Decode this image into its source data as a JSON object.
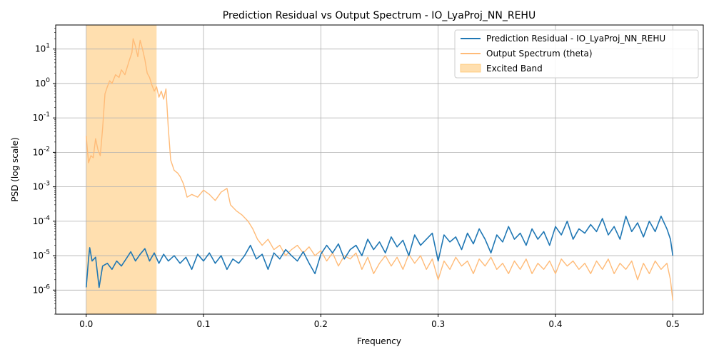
{
  "chart_data": {
    "type": "line",
    "title": "Prediction Residual vs Output Spectrum - IO_LyaProj_NN_REHU",
    "xlabel": "Frequency",
    "ylabel": "PSD (log scale)",
    "xlim": [
      -0.026,
      0.526
    ],
    "ylim": [
      2e-07,
      50
    ],
    "yscale": "log",
    "grid": true,
    "legend_position": "top-right",
    "x_ticks": [
      0.0,
      0.1,
      0.2,
      0.3,
      0.4,
      0.5
    ],
    "x_tick_labels": [
      "0.0",
      "0.1",
      "0.2",
      "0.3",
      "0.4",
      "0.5"
    ],
    "y_ticks": [
      1e-06,
      1e-05,
      0.0001,
      0.001,
      0.01,
      0.1,
      1,
      10
    ],
    "y_tick_exponents": [
      "-6",
      "-5",
      "-4",
      "-3",
      "-2",
      "-1",
      "0",
      "1"
    ],
    "y_tick_base": "10",
    "band": {
      "name": "Excited Band",
      "x_start": 0.0,
      "x_end": 0.06,
      "color": "#ffb74d"
    },
    "series": [
      {
        "name": "Prediction Residual - IO_LyaProj_NN_REHU",
        "color": "#1f77b4",
        "points": [
          [
            0.0,
            1.2e-06
          ],
          [
            0.002,
            8e-06
          ],
          [
            0.003,
            1.7e-05
          ],
          [
            0.005,
            7e-06
          ],
          [
            0.008,
            9e-06
          ],
          [
            0.011,
            1.2e-06
          ],
          [
            0.014,
            5e-06
          ],
          [
            0.018,
            6e-06
          ],
          [
            0.022,
            4e-06
          ],
          [
            0.026,
            7e-06
          ],
          [
            0.03,
            5e-06
          ],
          [
            0.034,
            8e-06
          ],
          [
            0.038,
            1.3e-05
          ],
          [
            0.042,
            7e-06
          ],
          [
            0.046,
            1.1e-05
          ],
          [
            0.05,
            1.6e-05
          ],
          [
            0.054,
            7e-06
          ],
          [
            0.058,
            1.2e-05
          ],
          [
            0.062,
            6e-06
          ],
          [
            0.066,
            1.1e-05
          ],
          [
            0.07,
            7e-06
          ],
          [
            0.075,
            1e-05
          ],
          [
            0.08,
            6e-06
          ],
          [
            0.085,
            9e-06
          ],
          [
            0.09,
            4e-06
          ],
          [
            0.095,
            1.1e-05
          ],
          [
            0.1,
            7e-06
          ],
          [
            0.105,
            1.2e-05
          ],
          [
            0.11,
            6e-06
          ],
          [
            0.115,
            1e-05
          ],
          [
            0.12,
            4e-06
          ],
          [
            0.125,
            8e-06
          ],
          [
            0.13,
            6e-06
          ],
          [
            0.135,
            1e-05
          ],
          [
            0.14,
            2e-05
          ],
          [
            0.145,
            8e-06
          ],
          [
            0.15,
            1.1e-05
          ],
          [
            0.155,
            4e-06
          ],
          [
            0.16,
            1.2e-05
          ],
          [
            0.165,
            8e-06
          ],
          [
            0.17,
            1.5e-05
          ],
          [
            0.175,
            1e-05
          ],
          [
            0.18,
            7e-06
          ],
          [
            0.185,
            1.3e-05
          ],
          [
            0.19,
            6e-06
          ],
          [
            0.195,
            3e-06
          ],
          [
            0.2,
            1.1e-05
          ],
          [
            0.205,
            2e-05
          ],
          [
            0.21,
            1.2e-05
          ],
          [
            0.215,
            2.2e-05
          ],
          [
            0.22,
            8e-06
          ],
          [
            0.225,
            1.5e-05
          ],
          [
            0.23,
            2e-05
          ],
          [
            0.235,
            1e-05
          ],
          [
            0.24,
            3e-05
          ],
          [
            0.245,
            1.5e-05
          ],
          [
            0.25,
            2.5e-05
          ],
          [
            0.255,
            1.2e-05
          ],
          [
            0.26,
            3.5e-05
          ],
          [
            0.265,
            1.8e-05
          ],
          [
            0.27,
            2.8e-05
          ],
          [
            0.275,
            1e-05
          ],
          [
            0.28,
            4e-05
          ],
          [
            0.285,
            2e-05
          ],
          [
            0.29,
            3e-05
          ],
          [
            0.295,
            4.5e-05
          ],
          [
            0.3,
            7e-06
          ],
          [
            0.305,
            4e-05
          ],
          [
            0.31,
            2.5e-05
          ],
          [
            0.315,
            3.5e-05
          ],
          [
            0.32,
            1.5e-05
          ],
          [
            0.325,
            4.5e-05
          ],
          [
            0.33,
            2.2e-05
          ],
          [
            0.335,
            6e-05
          ],
          [
            0.34,
            3e-05
          ],
          [
            0.345,
            1.2e-05
          ],
          [
            0.35,
            4e-05
          ],
          [
            0.355,
            2.5e-05
          ],
          [
            0.36,
            7e-05
          ],
          [
            0.365,
            3e-05
          ],
          [
            0.37,
            4.5e-05
          ],
          [
            0.375,
            2e-05
          ],
          [
            0.38,
            6e-05
          ],
          [
            0.385,
            3e-05
          ],
          [
            0.39,
            5e-05
          ],
          [
            0.395,
            2e-05
          ],
          [
            0.4,
            7e-05
          ],
          [
            0.405,
            4e-05
          ],
          [
            0.41,
            0.0001
          ],
          [
            0.415,
            3e-05
          ],
          [
            0.42,
            6e-05
          ],
          [
            0.425,
            4.5e-05
          ],
          [
            0.43,
            8e-05
          ],
          [
            0.435,
            5e-05
          ],
          [
            0.44,
            0.00012
          ],
          [
            0.445,
            4e-05
          ],
          [
            0.45,
            7e-05
          ],
          [
            0.455,
            3e-05
          ],
          [
            0.46,
            0.00014
          ],
          [
            0.465,
            5e-05
          ],
          [
            0.47,
            9e-05
          ],
          [
            0.475,
            3.5e-05
          ],
          [
            0.48,
            0.0001
          ],
          [
            0.485,
            5e-05
          ],
          [
            0.49,
            0.00014
          ],
          [
            0.495,
            6e-05
          ],
          [
            0.498,
            3e-05
          ],
          [
            0.5,
            1e-05
          ]
        ]
      },
      {
        "name": "Output Spectrum (theta)",
        "color": "#ffbb78",
        "points": [
          [
            0.0,
            0.03
          ],
          [
            0.002,
            0.005
          ],
          [
            0.004,
            0.008
          ],
          [
            0.006,
            0.007
          ],
          [
            0.008,
            0.025
          ],
          [
            0.01,
            0.012
          ],
          [
            0.012,
            0.008
          ],
          [
            0.014,
            0.05
          ],
          [
            0.016,
            0.5
          ],
          [
            0.018,
            0.8
          ],
          [
            0.02,
            1.2
          ],
          [
            0.022,
            1.0
          ],
          [
            0.025,
            1.8
          ],
          [
            0.028,
            1.5
          ],
          [
            0.03,
            2.5
          ],
          [
            0.033,
            1.8
          ],
          [
            0.035,
            3.0
          ],
          [
            0.037,
            5.0
          ],
          [
            0.039,
            8.0
          ],
          [
            0.04,
            20.0
          ],
          [
            0.042,
            12.0
          ],
          [
            0.044,
            6.0
          ],
          [
            0.046,
            18.0
          ],
          [
            0.048,
            10.0
          ],
          [
            0.05,
            5.0
          ],
          [
            0.052,
            2.0
          ],
          [
            0.054,
            1.5
          ],
          [
            0.056,
            0.9
          ],
          [
            0.058,
            0.6
          ],
          [
            0.06,
            0.8
          ],
          [
            0.062,
            0.4
          ],
          [
            0.064,
            0.6
          ],
          [
            0.066,
            0.35
          ],
          [
            0.068,
            0.7
          ],
          [
            0.07,
            0.05
          ],
          [
            0.072,
            0.006
          ],
          [
            0.075,
            0.003
          ],
          [
            0.078,
            0.0025
          ],
          [
            0.08,
            0.002
          ],
          [
            0.083,
            0.0012
          ],
          [
            0.086,
            0.0005
          ],
          [
            0.09,
            0.0006
          ],
          [
            0.095,
            0.0005
          ],
          [
            0.1,
            0.0008
          ],
          [
            0.105,
            0.0006
          ],
          [
            0.11,
            0.0004
          ],
          [
            0.115,
            0.0007
          ],
          [
            0.12,
            0.0009
          ],
          [
            0.123,
            0.0003
          ],
          [
            0.128,
            0.0002
          ],
          [
            0.133,
            0.00015
          ],
          [
            0.138,
            0.0001
          ],
          [
            0.142,
            6e-05
          ],
          [
            0.146,
            3e-05
          ],
          [
            0.15,
            2e-05
          ],
          [
            0.155,
            3e-05
          ],
          [
            0.16,
            1.5e-05
          ],
          [
            0.165,
            2e-05
          ],
          [
            0.17,
            1e-05
          ],
          [
            0.175,
            1.5e-05
          ],
          [
            0.18,
            2e-05
          ],
          [
            0.185,
            1.2e-05
          ],
          [
            0.19,
            1.8e-05
          ],
          [
            0.195,
            1e-05
          ],
          [
            0.2,
            1.4e-05
          ],
          [
            0.205,
            7e-06
          ],
          [
            0.21,
            1.2e-05
          ],
          [
            0.215,
            5e-06
          ],
          [
            0.22,
            1e-05
          ],
          [
            0.225,
            8e-06
          ],
          [
            0.23,
            1.2e-05
          ],
          [
            0.235,
            4e-06
          ],
          [
            0.24,
            9e-06
          ],
          [
            0.245,
            3e-06
          ],
          [
            0.25,
            6e-06
          ],
          [
            0.255,
            1e-05
          ],
          [
            0.26,
            5e-06
          ],
          [
            0.265,
            9e-06
          ],
          [
            0.27,
            4e-06
          ],
          [
            0.275,
            1.1e-05
          ],
          [
            0.28,
            6e-06
          ],
          [
            0.285,
            1e-05
          ],
          [
            0.29,
            4e-06
          ],
          [
            0.295,
            8e-06
          ],
          [
            0.3,
            2e-06
          ],
          [
            0.305,
            7e-06
          ],
          [
            0.31,
            4e-06
          ],
          [
            0.315,
            9e-06
          ],
          [
            0.32,
            5e-06
          ],
          [
            0.325,
            7e-06
          ],
          [
            0.33,
            3e-06
          ],
          [
            0.335,
            8e-06
          ],
          [
            0.34,
            5e-06
          ],
          [
            0.345,
            9e-06
          ],
          [
            0.35,
            4e-06
          ],
          [
            0.355,
            6e-06
          ],
          [
            0.36,
            3e-06
          ],
          [
            0.365,
            7e-06
          ],
          [
            0.37,
            4e-06
          ],
          [
            0.375,
            8e-06
          ],
          [
            0.38,
            3e-06
          ],
          [
            0.385,
            6e-06
          ],
          [
            0.39,
            4e-06
          ],
          [
            0.395,
            7e-06
          ],
          [
            0.4,
            3e-06
          ],
          [
            0.405,
            8e-06
          ],
          [
            0.41,
            5e-06
          ],
          [
            0.415,
            7e-06
          ],
          [
            0.42,
            4e-06
          ],
          [
            0.425,
            6e-06
          ],
          [
            0.43,
            3e-06
          ],
          [
            0.435,
            7e-06
          ],
          [
            0.44,
            4e-06
          ],
          [
            0.445,
            8e-06
          ],
          [
            0.45,
            3e-06
          ],
          [
            0.455,
            6e-06
          ],
          [
            0.46,
            4e-06
          ],
          [
            0.465,
            7e-06
          ],
          [
            0.47,
            2e-06
          ],
          [
            0.475,
            6e-06
          ],
          [
            0.48,
            3e-06
          ],
          [
            0.485,
            7e-06
          ],
          [
            0.49,
            4e-06
          ],
          [
            0.495,
            6e-06
          ],
          [
            0.498,
            2e-06
          ],
          [
            0.5,
            5e-07
          ]
        ]
      }
    ]
  }
}
